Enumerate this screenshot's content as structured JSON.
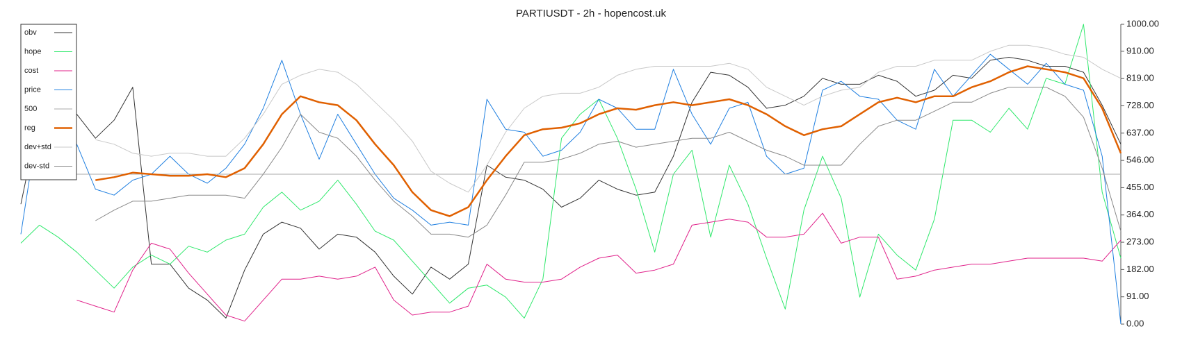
{
  "chart_data": {
    "type": "line",
    "title": "PARTIUSDT - 2h - hopencost.uk",
    "ylim": [
      0,
      1000
    ],
    "yticks": [
      {
        "value": 0,
        "label": "0.00"
      },
      {
        "value": 91,
        "label": "91.00"
      },
      {
        "value": 182,
        "label": "182.00"
      },
      {
        "value": 273,
        "label": "273.00"
      },
      {
        "value": 364,
        "label": "364.00"
      },
      {
        "value": 455,
        "label": "455.00"
      },
      {
        "value": 546,
        "label": "546.00"
      },
      {
        "value": 637,
        "label": "637.00"
      },
      {
        "value": 728,
        "label": "728.00"
      },
      {
        "value": 819,
        "label": "819.00"
      },
      {
        "value": 910,
        "label": "910.00"
      },
      {
        "value": 1000,
        "label": "1000.00"
      }
    ],
    "legend": "upper left",
    "series": [
      {
        "name": "obv",
        "color": "#333333",
        "width": 1,
        "values": [
          400,
          700,
          640,
          700,
          620,
          680,
          790,
          200,
          200,
          120,
          80,
          20,
          180,
          300,
          340,
          320,
          250,
          300,
          290,
          240,
          160,
          100,
          190,
          150,
          200,
          530,
          490,
          480,
          450,
          390,
          420,
          480,
          450,
          430,
          440,
          560,
          740,
          840,
          830,
          790,
          720,
          730,
          760,
          820,
          800,
          800,
          830,
          810,
          760,
          780,
          830,
          820,
          880,
          890,
          880,
          860,
          860,
          840,
          730,
          600
        ]
      },
      {
        "name": "hope",
        "color": "#2ee86b",
        "width": 1,
        "values": [
          270,
          330,
          290,
          240,
          180,
          120,
          190,
          230,
          200,
          260,
          240,
          280,
          300,
          390,
          440,
          380,
          410,
          480,
          400,
          310,
          280,
          210,
          140,
          70,
          120,
          130,
          90,
          20,
          150,
          620,
          700,
          750,
          620,
          450,
          240,
          500,
          580,
          290,
          530,
          400,
          220,
          50,
          380,
          560,
          420,
          90,
          300,
          230,
          180,
          350,
          680,
          680,
          640,
          720,
          650,
          820,
          800,
          1000,
          440,
          220
        ]
      },
      {
        "name": "cost",
        "color": "#e0218a",
        "width": 1,
        "values": [
          null,
          null,
          null,
          80,
          60,
          40,
          180,
          270,
          250,
          170,
          100,
          30,
          10,
          80,
          150,
          150,
          160,
          150,
          160,
          190,
          80,
          30,
          40,
          40,
          60,
          200,
          150,
          140,
          140,
          150,
          190,
          220,
          230,
          170,
          180,
          200,
          330,
          340,
          350,
          340,
          290,
          290,
          300,
          370,
          270,
          290,
          290,
          150,
          160,
          180,
          190,
          200,
          200,
          210,
          220,
          220,
          220,
          220,
          210,
          280
        ]
      },
      {
        "name": "price",
        "color": "#1f7fe0",
        "width": 1,
        "values": [
          300,
          700,
          650,
          600,
          450,
          430,
          480,
          500,
          560,
          500,
          470,
          520,
          600,
          720,
          880,
          700,
          550,
          700,
          600,
          500,
          420,
          380,
          330,
          340,
          330,
          750,
          650,
          640,
          560,
          580,
          640,
          750,
          720,
          650,
          650,
          850,
          700,
          600,
          720,
          740,
          560,
          500,
          520,
          780,
          810,
          760,
          750,
          680,
          650,
          850,
          760,
          830,
          900,
          850,
          800,
          870,
          800,
          780,
          560,
          0
        ]
      },
      {
        "name": "500",
        "color": "#aaaaaa",
        "width": 1,
        "values": [
          500,
          500,
          500,
          500,
          500,
          500,
          500,
          500,
          500,
          500,
          500,
          500,
          500,
          500,
          500,
          500,
          500,
          500,
          500,
          500,
          500,
          500,
          500,
          500,
          500,
          500,
          500,
          500,
          500,
          500,
          500,
          500,
          500,
          500,
          500,
          500,
          500,
          500,
          500,
          500,
          500,
          500,
          500,
          500,
          500,
          500,
          500,
          500,
          500,
          500,
          500,
          500,
          500,
          500,
          500,
          500,
          500,
          500,
          500,
          500
        ]
      },
      {
        "name": "reg",
        "color": "#e06000",
        "width": 2.5,
        "values": [
          null,
          null,
          null,
          null,
          480,
          490,
          505,
          500,
          495,
          495,
          500,
          490,
          520,
          600,
          700,
          760,
          740,
          730,
          680,
          600,
          530,
          440,
          380,
          360,
          390,
          480,
          560,
          630,
          650,
          655,
          670,
          700,
          720,
          715,
          730,
          740,
          730,
          740,
          750,
          730,
          700,
          660,
          630,
          650,
          660,
          700,
          740,
          755,
          740,
          760,
          760,
          790,
          810,
          840,
          860,
          850,
          840,
          820,
          720,
          570
        ]
      },
      {
        "name": "dev+std",
        "color": "#c8c8c8",
        "width": 1,
        "values": [
          null,
          null,
          null,
          null,
          615,
          600,
          570,
          560,
          570,
          570,
          560,
          560,
          620,
          700,
          800,
          830,
          850,
          840,
          800,
          740,
          680,
          610,
          510,
          470,
          440,
          530,
          640,
          720,
          760,
          770,
          770,
          790,
          830,
          850,
          860,
          860,
          860,
          860,
          870,
          850,
          790,
          760,
          730,
          760,
          780,
          790,
          840,
          860,
          860,
          880,
          880,
          880,
          910,
          930,
          930,
          920,
          900,
          890,
          850,
          820
        ]
      },
      {
        "name": "dev-std",
        "color": "#888888",
        "width": 1,
        "values": [
          null,
          null,
          null,
          null,
          345,
          380,
          410,
          410,
          420,
          430,
          430,
          430,
          420,
          500,
          590,
          700,
          640,
          620,
          560,
          480,
          410,
          360,
          300,
          300,
          290,
          330,
          430,
          540,
          540,
          550,
          570,
          600,
          610,
          590,
          600,
          610,
          620,
          620,
          640,
          610,
          580,
          560,
          530,
          530,
          530,
          600,
          660,
          680,
          680,
          710,
          740,
          740,
          770,
          790,
          790,
          790,
          760,
          690,
          520,
          310
        ]
      }
    ]
  }
}
